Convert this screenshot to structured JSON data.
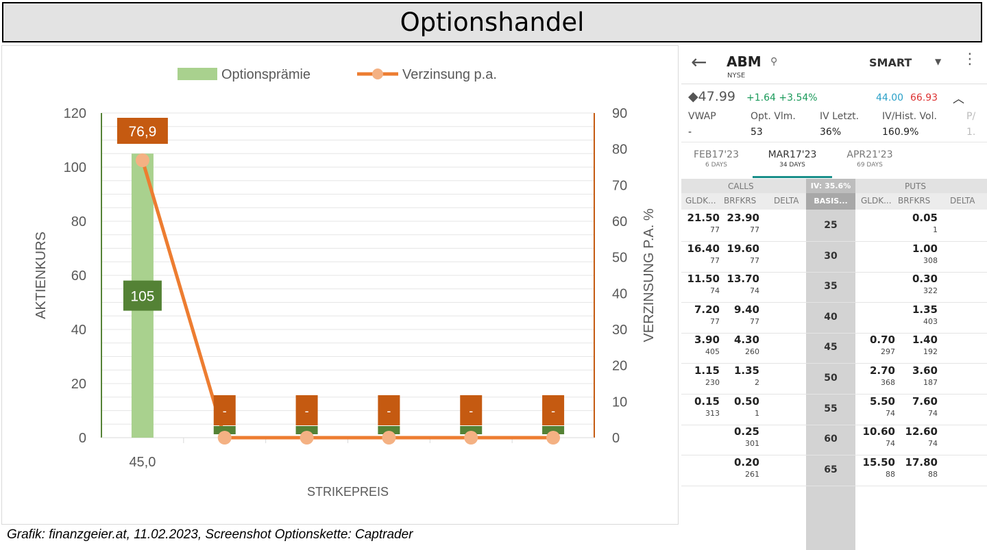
{
  "header": {
    "title": "Optionshandel"
  },
  "caption": "Grafik: finanzgeier.at, 11.02.2023, Screenshot Optionskette: Captrader",
  "chart_data": {
    "type": "bar",
    "categories": [
      "45,0",
      "",
      "",
      "",
      "",
      ""
    ],
    "series": [
      {
        "name": "Optionsprämie",
        "kind": "bar",
        "axis": "left",
        "values": [
          105,
          0,
          0,
          0,
          0,
          0
        ],
        "labels": [
          "105",
          "-",
          "-",
          "-",
          "-",
          "-"
        ],
        "color": "#a9d18e",
        "label_color": "#548235"
      },
      {
        "name": "Verzinsung p.a.",
        "kind": "line",
        "axis": "right",
        "values": [
          76.9,
          0,
          0,
          0,
          0,
          0
        ],
        "labels": [
          "76,9",
          "-",
          "-",
          "-",
          "-",
          "-"
        ],
        "color": "#ed7d31",
        "marker_color": "#f4b183",
        "label_color": "#c55a11"
      }
    ],
    "xlabel": "STRIKEPREIS",
    "ylabel": "AKTIENKURS",
    "y2label": "VERZINSUNG P.A. %",
    "ylim": [
      0,
      120
    ],
    "y2lim": [
      0,
      90
    ],
    "yticks": [
      0,
      20,
      40,
      60,
      80,
      100,
      120
    ],
    "y2ticks": [
      0,
      10,
      20,
      30,
      40,
      50,
      60,
      70,
      80,
      90
    ],
    "grid": true,
    "legend": "top"
  },
  "phone": {
    "back_icon": "←",
    "symbol": "ABM",
    "exchange": "NYSE",
    "search_icon": "⚲",
    "route": "SMART",
    "caret_icon": "▼",
    "more_icon": "⋮",
    "last_price": "◆47.99",
    "change": "+1.64 +3.54%",
    "bid": "44.00",
    "ask": "66.93",
    "collapse_icon": "︿",
    "stats": [
      {
        "label": "VWAP",
        "value": "-"
      },
      {
        "label": "Opt. Vlm.",
        "value": "53"
      },
      {
        "label": "IV Letzt.",
        "value": "36%"
      },
      {
        "label": "IV/Hist. Vol.",
        "value": "160.9%"
      },
      {
        "label": "P/",
        "value": "1."
      }
    ],
    "expiries": [
      {
        "label": "FEB17'23",
        "days": "6 DAYS"
      },
      {
        "label": "MAR17'23",
        "days": "34 DAYS"
      },
      {
        "label": "APR21'23",
        "days": "69 DAYS"
      }
    ],
    "calls_label": "CALLS",
    "puts_label": "PUTS",
    "iv_label": "IV: 35.6%",
    "basis_label": "BASIS...",
    "col_bid": "GLDK...",
    "col_ask": "BRFKRS",
    "col_delta": "DELTA",
    "rows": [
      {
        "strike": "25",
        "c_bid": "21.50",
        "c_bid_sz": "77",
        "c_ask": "23.90",
        "c_ask_sz": "77",
        "p_bid": "",
        "p_bid_sz": "",
        "p_ask": "0.05",
        "p_ask_sz": "1"
      },
      {
        "strike": "30",
        "c_bid": "16.40",
        "c_bid_sz": "77",
        "c_ask": "19.60",
        "c_ask_sz": "77",
        "p_bid": "",
        "p_bid_sz": "",
        "p_ask": "1.00",
        "p_ask_sz": "308"
      },
      {
        "strike": "35",
        "c_bid": "11.50",
        "c_bid_sz": "74",
        "c_ask": "13.70",
        "c_ask_sz": "74",
        "p_bid": "",
        "p_bid_sz": "",
        "p_ask": "0.30",
        "p_ask_sz": "322"
      },
      {
        "strike": "40",
        "c_bid": "7.20",
        "c_bid_sz": "77",
        "c_ask": "9.40",
        "c_ask_sz": "77",
        "p_bid": "",
        "p_bid_sz": "",
        "p_ask": "1.35",
        "p_ask_sz": "403"
      },
      {
        "strike": "45",
        "c_bid": "3.90",
        "c_bid_sz": "405",
        "c_ask": "4.30",
        "c_ask_sz": "260",
        "p_bid": "0.70",
        "p_bid_sz": "297",
        "p_ask": "1.40",
        "p_ask_sz": "192"
      },
      {
        "strike": "50",
        "c_bid": "1.15",
        "c_bid_sz": "230",
        "c_ask": "1.35",
        "c_ask_sz": "2",
        "p_bid": "2.70",
        "p_bid_sz": "368",
        "p_ask": "3.60",
        "p_ask_sz": "187"
      },
      {
        "strike": "55",
        "c_bid": "0.15",
        "c_bid_sz": "313",
        "c_ask": "0.50",
        "c_ask_sz": "1",
        "p_bid": "5.50",
        "p_bid_sz": "74",
        "p_ask": "7.60",
        "p_ask_sz": "74"
      },
      {
        "strike": "60",
        "c_bid": "",
        "c_bid_sz": "",
        "c_ask": "0.25",
        "c_ask_sz": "301",
        "p_bid": "10.60",
        "p_bid_sz": "74",
        "p_ask": "12.60",
        "p_ask_sz": "74"
      },
      {
        "strike": "65",
        "c_bid": "",
        "c_bid_sz": "",
        "c_ask": "0.20",
        "c_ask_sz": "261",
        "p_bid": "15.50",
        "p_bid_sz": "88",
        "p_ask": "17.80",
        "p_ask_sz": "88"
      }
    ]
  }
}
